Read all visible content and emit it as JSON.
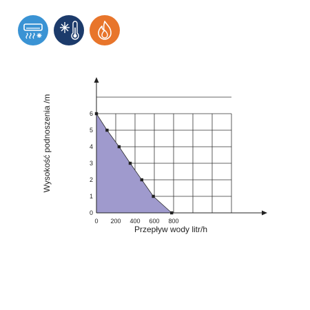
{
  "icons": [
    {
      "name": "air-conditioner-icon",
      "color": "#3a93d4"
    },
    {
      "name": "snowflake-thermometer-icon",
      "color": "#1c3b6b"
    },
    {
      "name": "flame-icon",
      "color": "#e8752b"
    }
  ],
  "chart_data": {
    "type": "area",
    "xlabel": "Przepływ wody litr/h",
    "ylabel": "Wysokość podnoszenia /m",
    "x_ticks": [
      0,
      200,
      400,
      600,
      800
    ],
    "y_ticks": [
      0,
      1,
      2,
      3,
      4,
      5,
      6
    ],
    "xlim": [
      0,
      1400
    ],
    "ylim": [
      0,
      7
    ],
    "grid": true,
    "fill_color": "#9f9acd",
    "line_color": "#2b2b2b",
    "marker_color": "#222222",
    "series": [
      {
        "x": [
          0,
          110,
          235,
          350,
          470,
          590,
          780
        ],
        "y": [
          6,
          5,
          4,
          3,
          2,
          1,
          0
        ]
      }
    ]
  }
}
